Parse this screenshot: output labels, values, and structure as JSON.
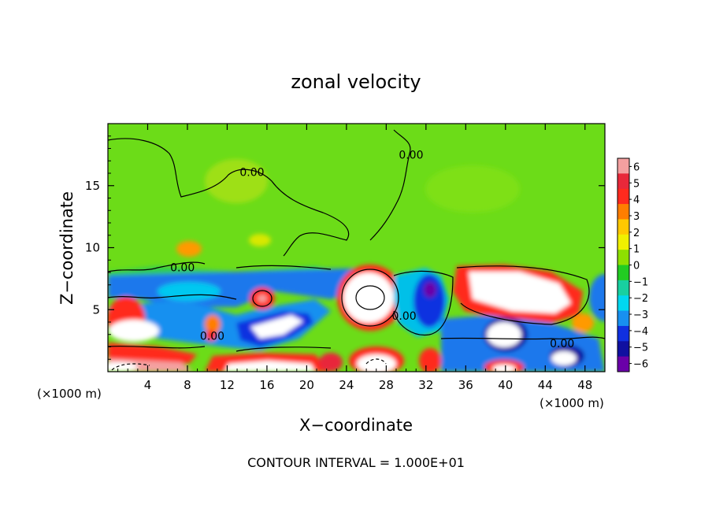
{
  "chart_data": {
    "type": "heatmap",
    "title": "zonal velocity",
    "xlabel": "X−coordinate",
    "ylabel": "Z−coordinate",
    "x_unit_label": "(×1000 m)",
    "x_ticks": [
      4,
      8,
      12,
      16,
      20,
      24,
      28,
      32,
      36,
      40,
      44,
      48
    ],
    "y_ticks": [
      5,
      10,
      15
    ],
    "xlim": [
      0,
      50
    ],
    "ylim": [
      0,
      20
    ],
    "colorbar_ticks": [
      "6",
      "5",
      "4",
      "3",
      "2",
      "1",
      "0",
      "−1",
      "−2",
      "−3",
      "−4",
      "−5",
      "−6"
    ],
    "colorbar_colors": [
      "#f4a0a0",
      "#e8283a",
      "#ff2a1e",
      "#ff7e00",
      "#ffc800",
      "#f0f000",
      "#8ee000",
      "#22cc22",
      "#18d0a0",
      "#00d8f0",
      "#1890f0",
      "#1030e0",
      "#1010a0",
      "#6a00a8"
    ],
    "contour_labels": [
      {
        "text": "0.00",
        "x": 14.5,
        "z": 16.1
      },
      {
        "text": "0.00",
        "x": 30.5,
        "z": 17.5
      },
      {
        "text": "0.00",
        "x": 7.5,
        "z": 8.4
      },
      {
        "text": "0.00",
        "x": 10.5,
        "z": 2.9
      },
      {
        "text": "0.00",
        "x": 29.8,
        "z": 4.5
      },
      {
        "text": "0.00",
        "x": 45.7,
        "z": 2.3
      }
    ],
    "annotation": "CONTOUR INTERVAL = 1.000E+01"
  }
}
